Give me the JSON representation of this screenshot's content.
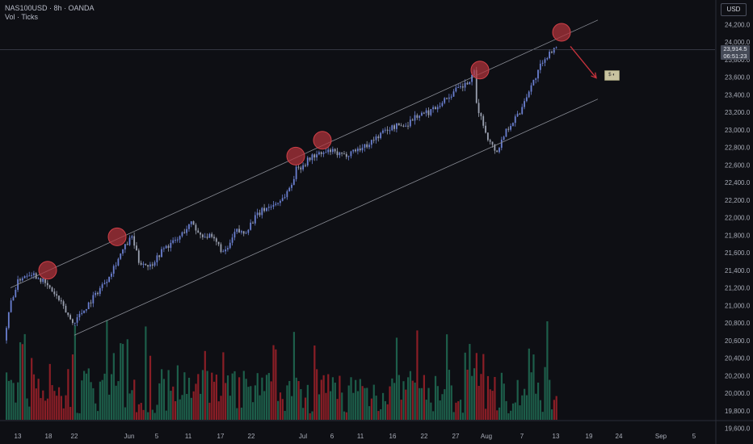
{
  "header": {
    "title": "NAS100USD · 8h · OANDA",
    "subtitle": "Vol · Ticks"
  },
  "currency_badge": "USD",
  "last_price": {
    "value": "23,914.5",
    "countdown": "06:51:23"
  },
  "emoji_marker": "$ ◐",
  "colors": {
    "background": "#0e0f14",
    "up_candle": "#6a7fd0",
    "down_candle": "#9aa0b0",
    "volume_up": "#1d5e4a",
    "volume_down": "#8a1e26",
    "channel_line": "#8a8d96",
    "touch_marker": "#b3333c",
    "arrow": "#c8323c",
    "axis_text": "#a9adb8"
  },
  "chart_data": {
    "type": "candlestick",
    "title": "NAS100USD · 8h · OANDA",
    "ylim": [
      19600,
      24400
    ],
    "y_ticks": [
      "24,200.0",
      "24,000.0",
      "23,800.0",
      "23,600.0",
      "23,400.0",
      "23,200.0",
      "23,000.0",
      "22,800.0",
      "22,600.0",
      "22,400.0",
      "22,200.0",
      "22,000.0",
      "21,800.0",
      "21,600.0",
      "21,400.0",
      "21,200.0",
      "21,000.0",
      "20,800.0",
      "20,600.0",
      "20,400.0",
      "20,200.0",
      "20,000.0",
      "19,800.0",
      "19,600.0"
    ],
    "x_ticks": [
      "13",
      "18",
      "22",
      "Jun",
      "5",
      "11",
      "17",
      "22",
      "Jul",
      "6",
      "11",
      "16",
      "22",
      "27",
      "Aug",
      "7",
      "13",
      "19",
      "24",
      "Sep",
      "5"
    ],
    "price_path": [
      [
        0,
        20600
      ],
      [
        6,
        21050
      ],
      [
        13,
        21300
      ],
      [
        23,
        21380
      ],
      [
        32,
        21300
      ],
      [
        45,
        21120
      ],
      [
        60,
        20800
      ],
      [
        70,
        20950
      ],
      [
        90,
        21300
      ],
      [
        105,
        21650
      ],
      [
        112,
        21780
      ],
      [
        118,
        21500
      ],
      [
        128,
        21450
      ],
      [
        140,
        21650
      ],
      [
        152,
        21750
      ],
      [
        158,
        21850
      ],
      [
        165,
        21950
      ],
      [
        170,
        21820
      ],
      [
        180,
        21780
      ],
      [
        187,
        21700
      ],
      [
        193,
        21580
      ],
      [
        198,
        21700
      ],
      [
        203,
        21850
      ],
      [
        210,
        21820
      ],
      [
        220,
        22000
      ],
      [
        228,
        22100
      ],
      [
        237,
        22150
      ],
      [
        245,
        22230
      ],
      [
        252,
        22380
      ],
      [
        256,
        22550
      ],
      [
        262,
        22600
      ],
      [
        270,
        22700
      ],
      [
        280,
        22730
      ],
      [
        286,
        22760
      ],
      [
        292,
        22720
      ],
      [
        298,
        22700
      ],
      [
        305,
        22760
      ],
      [
        315,
        22800
      ],
      [
        325,
        22900
      ],
      [
        335,
        23000
      ],
      [
        345,
        23050
      ],
      [
        352,
        23050
      ],
      [
        360,
        23150
      ],
      [
        372,
        23200
      ],
      [
        380,
        23280
      ],
      [
        388,
        23360
      ],
      [
        396,
        23450
      ],
      [
        403,
        23500
      ],
      [
        409,
        23560
      ],
      [
        412,
        23650
      ],
      [
        414,
        23300
      ],
      [
        420,
        23050
      ],
      [
        426,
        22850
      ],
      [
        432,
        22750
      ],
      [
        440,
        23000
      ],
      [
        446,
        23100
      ],
      [
        452,
        23200
      ],
      [
        458,
        23400
      ],
      [
        464,
        23550
      ],
      [
        470,
        23720
      ],
      [
        474,
        23780
      ],
      [
        478,
        23900
      ],
      [
        482,
        23914.5
      ]
    ],
    "upper_channel": {
      "start": [
        "May 13",
        21200
      ],
      "end": [
        "Aug 22",
        24250
      ]
    },
    "lower_channel": {
      "start": [
        "May 22",
        20660
      ],
      "end": [
        "Aug 22",
        23350
      ]
    },
    "touch_points": [
      {
        "label": "touch-1",
        "date": "May 18",
        "price": 21400
      },
      {
        "label": "touch-2",
        "date": "May 30",
        "price": 21780
      },
      {
        "label": "touch-3",
        "date": "Jul 1",
        "price": 22700
      },
      {
        "label": "touch-4",
        "date": "Jul 5",
        "price": 22880
      },
      {
        "label": "touch-5",
        "date": "Jul 30",
        "price": 23680
      },
      {
        "label": "touch-6",
        "date": "Aug 14",
        "price": 24110
      }
    ],
    "projection_arrow": {
      "from": [
        "Aug 15",
        23950
      ],
      "to": [
        "Aug 20",
        23590
      ]
    },
    "current_price": 23914.5,
    "volume_series": "green/red tick volume bars per candle (estimated)"
  }
}
